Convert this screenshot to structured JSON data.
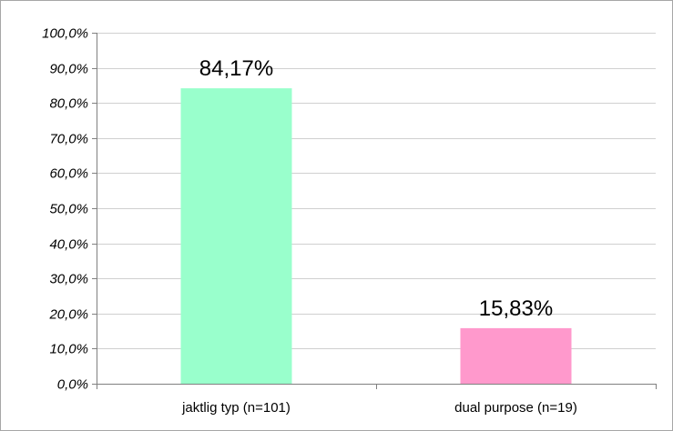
{
  "chart_data": {
    "type": "bar",
    "categories": [
      "jaktlig typ (n=101)",
      "dual purpose (n=19)"
    ],
    "values": [
      84.17,
      15.83
    ],
    "data_labels": [
      "84,17%",
      "15,83%"
    ],
    "y_tick_labels": [
      "0,0%",
      "10,0%",
      "20,0%",
      "30,0%",
      "40,0%",
      "50,0%",
      "60,0%",
      "70,0%",
      "80,0%",
      "90,0%",
      "100,0%"
    ],
    "y_ticks": [
      0,
      10,
      20,
      30,
      40,
      50,
      60,
      70,
      80,
      90,
      100
    ],
    "ylim": [
      0,
      100
    ],
    "title": "",
    "xlabel": "",
    "ylabel": "",
    "grid": true,
    "legend": "none",
    "bar_colors": [
      "#99ffcc",
      "#ff99cc"
    ],
    "gridline_color": "#d0d0d0",
    "axis_color": "#808080"
  }
}
